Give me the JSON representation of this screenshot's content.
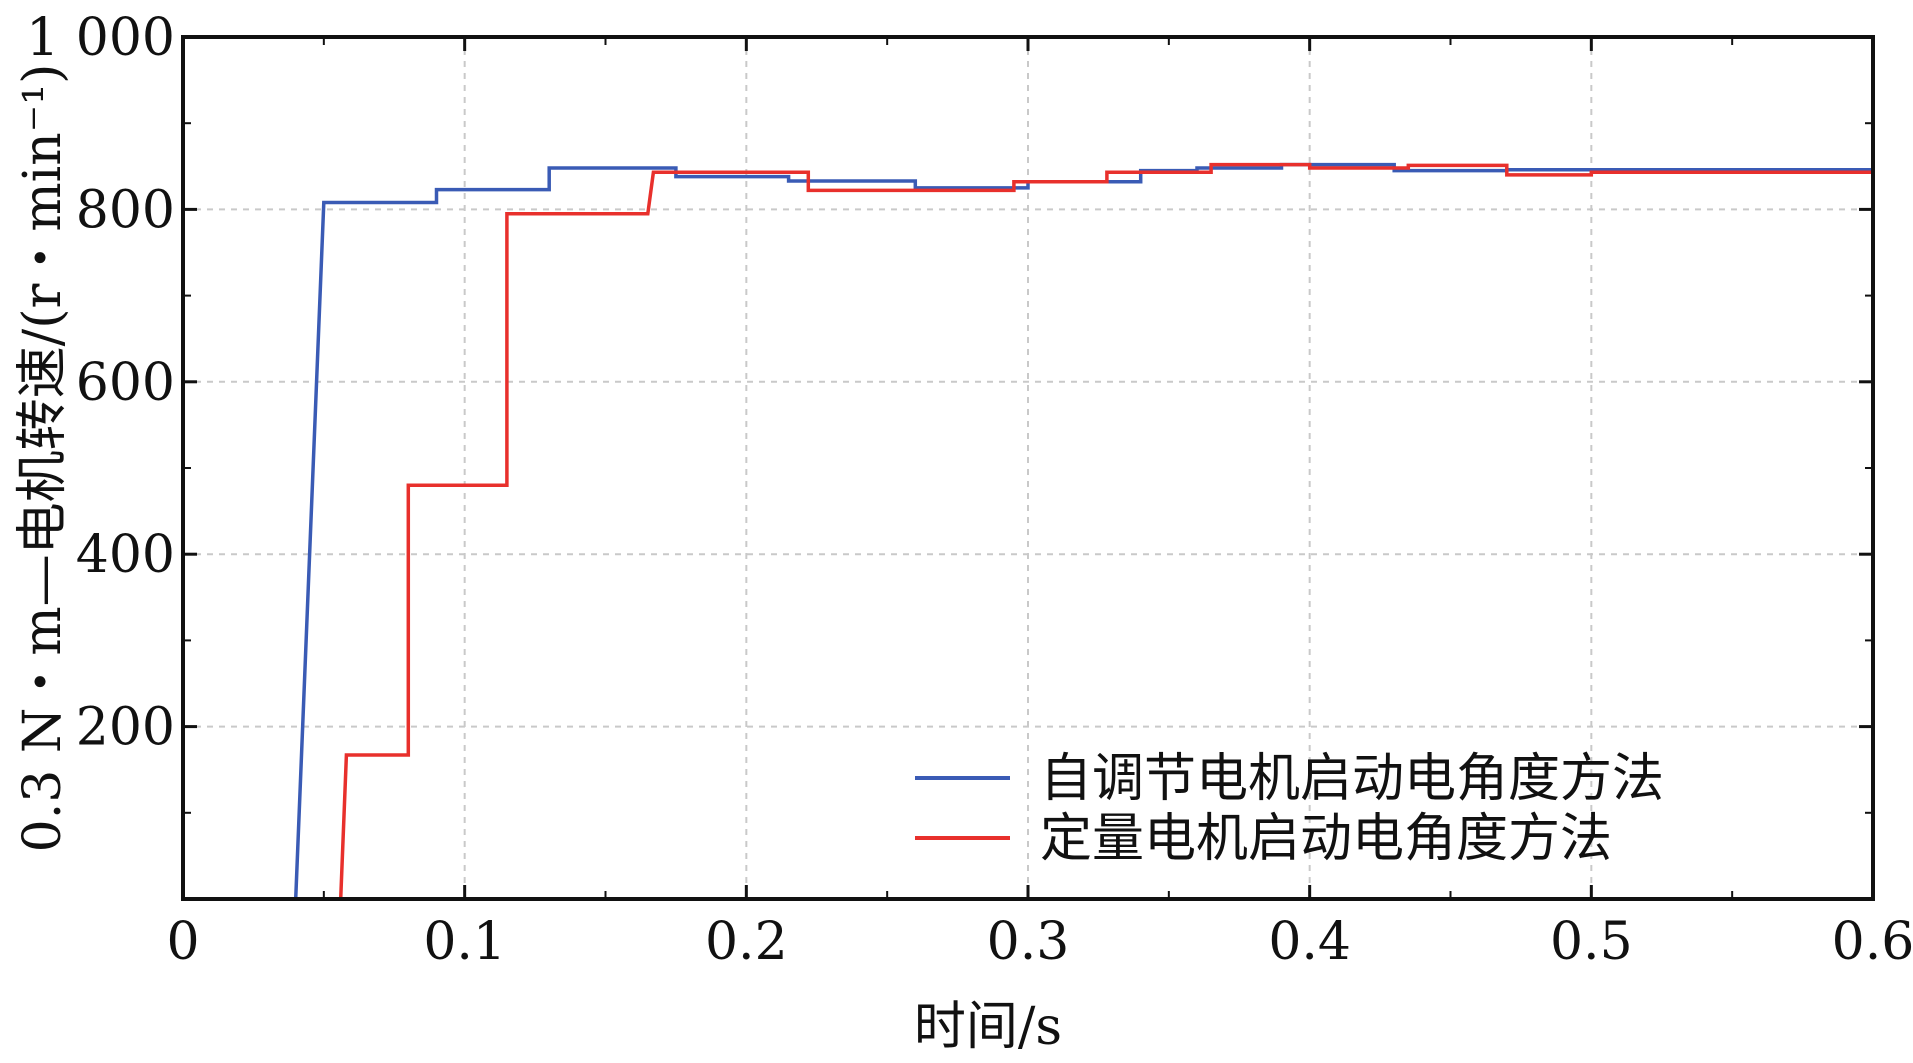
{
  "chart_data": {
    "type": "line",
    "xlabel": "时间/s",
    "ylabel": "0.3 N・m—电机转速/(r・min⁻¹)",
    "xlim": [
      0,
      0.6
    ],
    "ylim": [
      0,
      1000
    ],
    "x_ticks": [
      "0",
      "0.1",
      "0.2",
      "0.3",
      "0.4",
      "0.5",
      "0.6"
    ],
    "y_ticks": [
      "200",
      "400",
      "600",
      "800",
      "1 000"
    ],
    "grid": true,
    "legend_position": "bottom-right",
    "series": [
      {
        "name": "自调节电机启动电角度方法",
        "color": "#3a5bb5",
        "x": [
          0,
          0.04,
          0.05,
          0.09,
          0.09,
          0.13,
          0.13,
          0.175,
          0.175,
          0.215,
          0.215,
          0.26,
          0.26,
          0.3,
          0.3,
          0.34,
          0.34,
          0.36,
          0.36,
          0.39,
          0.39,
          0.43,
          0.43,
          0.47,
          0.47,
          0.52,
          0.52,
          0.6
        ],
        "y": [
          0,
          0,
          808,
          808,
          823,
          823,
          848,
          848,
          838,
          838,
          833,
          833,
          825,
          825,
          832,
          832,
          845,
          845,
          848,
          848,
          852,
          852,
          845,
          845,
          846,
          846,
          846,
          846
        ]
      },
      {
        "name": "定量电机启动电角度方法",
        "color": "#e8302c",
        "x": [
          0,
          0.056,
          0.058,
          0.08,
          0.08,
          0.115,
          0.115,
          0.165,
          0.167,
          0.222,
          0.222,
          0.295,
          0.295,
          0.328,
          0.328,
          0.365,
          0.365,
          0.4,
          0.4,
          0.435,
          0.435,
          0.47,
          0.47,
          0.5,
          0.5,
          0.6
        ],
        "y": [
          0,
          0,
          167,
          167,
          480,
          480,
          795,
          795,
          843,
          843,
          822,
          822,
          832,
          832,
          843,
          843,
          852,
          852,
          848,
          848,
          851,
          851,
          840,
          840,
          843,
          843
        ]
      }
    ]
  }
}
